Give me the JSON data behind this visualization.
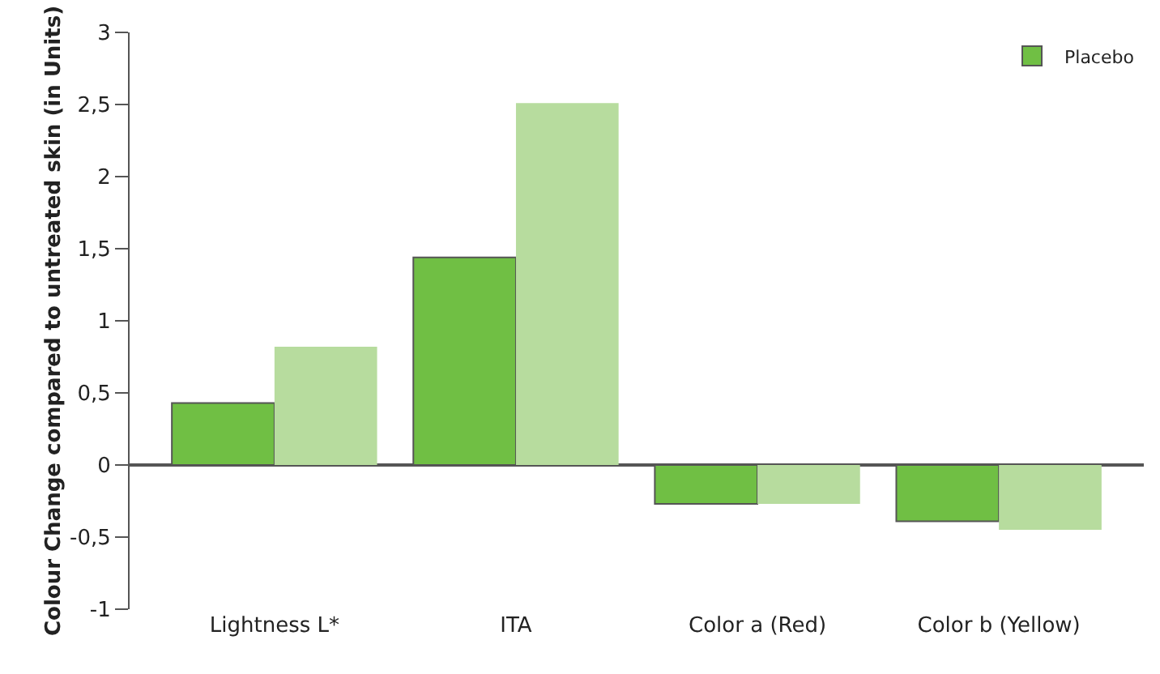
{
  "chart_data": {
    "type": "bar",
    "ylabel": "Colour Change compared to untreated skin (in Units)",
    "categories": [
      "Lightness L*",
      "ITA",
      "Color a (Red)",
      "Color b (Yellow)"
    ],
    "series": [
      {
        "name": "Placebo",
        "color": "#70bf44",
        "values": [
          0.43,
          1.44,
          -0.27,
          -0.39
        ]
      },
      {
        "color": "#b7dc9e",
        "values": [
          0.82,
          2.51,
          -0.27,
          -0.45
        ]
      }
    ],
    "ylim": [
      -1,
      3
    ],
    "yticks": [
      {
        "value": -1,
        "label": "-1"
      },
      {
        "value": -0.5,
        "label": "-0,5"
      },
      0,
      {
        "value": 0.5,
        "label": "0,5"
      },
      1,
      {
        "value": 1.5,
        "label": "1,5"
      },
      2,
      {
        "value": 2.5,
        "label": "2,5"
      },
      3
    ],
    "legend": "top right"
  }
}
